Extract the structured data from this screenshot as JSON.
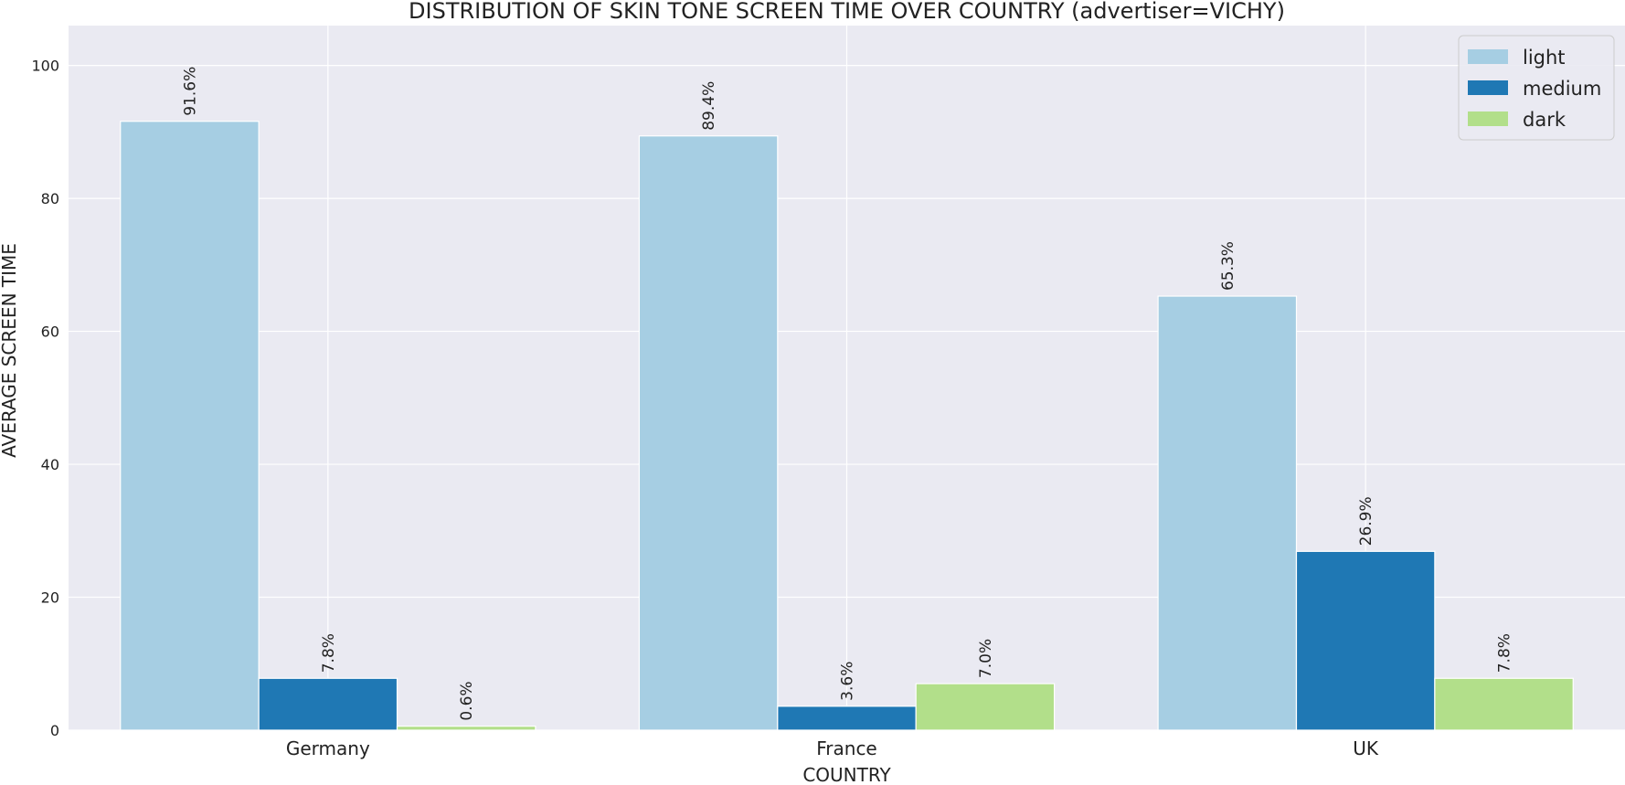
{
  "chart_data": {
    "type": "bar",
    "title": "DISTRIBUTION OF SKIN TONE SCREEN TIME OVER COUNTRY (advertiser=VICHY)",
    "xlabel": "COUNTRY",
    "ylabel": "AVERAGE SCREEN TIME",
    "categories": [
      "Germany",
      "France",
      "UK"
    ],
    "series": [
      {
        "name": "light",
        "color": "#a6cee3",
        "values": [
          91.6,
          89.4,
          65.3
        ],
        "labels": [
          "91.6%",
          "89.4%",
          "65.3%"
        ]
      },
      {
        "name": "medium",
        "color": "#1f78b4",
        "values": [
          7.8,
          3.6,
          26.9
        ],
        "labels": [
          "7.8%",
          "3.6%",
          "26.9%"
        ]
      },
      {
        "name": "dark",
        "color": "#b2df8a",
        "values": [
          0.6,
          7.0,
          7.8
        ],
        "labels": [
          "0.6%",
          "7.0%",
          "7.8%"
        ]
      }
    ],
    "ylim": [
      0,
      106
    ],
    "yticks": [
      0,
      20,
      40,
      60,
      80,
      100
    ],
    "ytick_labels": [
      "0",
      "20",
      "40",
      "60",
      "80",
      "100"
    ],
    "grid": true,
    "legend_position": "top-right",
    "background_color": "#eaeaf2",
    "grid_color": "#ffffff"
  }
}
